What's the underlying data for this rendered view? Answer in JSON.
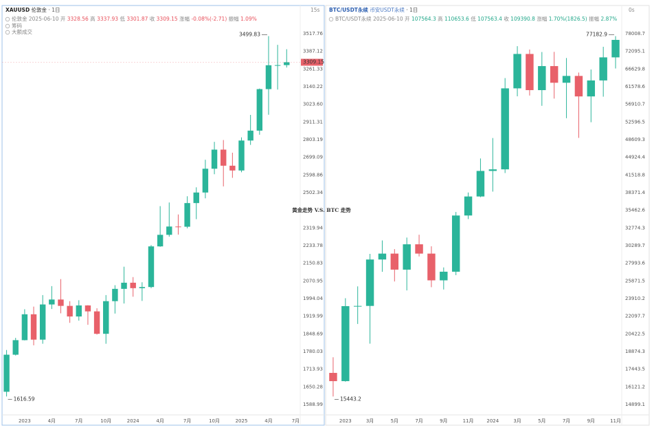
{
  "overlay_title": "黄金走势 V.S. BTC 走势",
  "chart_data": [
    {
      "type": "candlestick",
      "symbol": "XAUUSD",
      "name": "伦敦金",
      "interval": "1日",
      "refresh": "15s",
      "info_name": "伦敦金",
      "date": "2025-06-10",
      "quote": [
        {
          "label": "开",
          "value": "3328.56"
        },
        {
          "label": "高",
          "value": "3337.93"
        },
        {
          "label": "低",
          "value": "3301.87"
        },
        {
          "label": "收",
          "value": "3309.15"
        },
        {
          "label": "涨幅",
          "value": "-0.08%(-2.71)"
        },
        {
          "label": "振幅",
          "value": "1.09%"
        }
      ],
      "quote_color": "#e8505b",
      "indicators": [
        "筹码",
        "大额成交"
      ],
      "categories": [
        null,
        null,
        "2023",
        null,
        null,
        "4月",
        null,
        null,
        "7月",
        null,
        null,
        "10月",
        null,
        null,
        "2024",
        null,
        null,
        "4月",
        null,
        null,
        "7月",
        null,
        null,
        "10月",
        null,
        null,
        "2025",
        null,
        null,
        "4月",
        null,
        null,
        "7月"
      ],
      "open": [
        1633,
        1768,
        1824,
        1928,
        1826,
        1969,
        1990,
        1963,
        1919,
        1965,
        1940,
        1849,
        1983,
        2036,
        2063,
        2039,
        2044,
        2230,
        2286,
        2327,
        2326,
        2447,
        2503,
        2634,
        2744,
        2651,
        2624,
        2798,
        2858,
        3124,
        3288,
        3289,
        null
      ],
      "high": [
        1786,
        1833,
        1949,
        1960,
        2009,
        2048,
        2079,
        1983,
        1987,
        1966,
        1953,
        2009,
        2052,
        2135,
        2088,
        2065,
        2236,
        2431,
        2450,
        2388,
        2483,
        2531,
        2685,
        2790,
        2801,
        2726,
        2817,
        2956,
        3128,
        3499.83,
        3435,
        3403,
        null
      ],
      "low": [
        1616.59,
        1765,
        1823,
        1804,
        1810,
        1950,
        1932,
        1893,
        1902,
        1885,
        1846,
        1810,
        1931,
        1973,
        2002,
        1984,
        2039,
        2228,
        2277,
        2287,
        2318,
        2364,
        2472,
        2603,
        2536,
        2583,
        2614,
        2772,
        2833,
        2957,
        3121,
        3272,
        null
      ],
      "close": [
        1768,
        1824,
        1928,
        1826,
        1969,
        1990,
        1963,
        1919,
        1965,
        1940,
        1849,
        1983,
        2036,
        2063,
        2039,
        2044,
        2230,
        2286,
        2327,
        2326,
        2447,
        2503,
        2634,
        2744,
        2651,
        2624,
        2798,
        2858,
        3124,
        3288,
        3289,
        3309.15,
        null
      ],
      "up_color": "#2bb59a",
      "down_color": "#e8616a",
      "log_scale": true,
      "grid": false,
      "show_last_price": true,
      "ylim": [
        1561,
        3650
      ],
      "yticks": [
        3517.76,
        3387.12,
        3261.33,
        3140.22,
        {
          "value": 3023.6,
          "label": "3023.60"
        },
        2911.31,
        2803.19,
        2699.09,
        2598.86,
        2502.34,
        2319.94,
        2233.78,
        2150.83,
        2070.95,
        1994.04,
        1919.99,
        1848.69,
        1780.03,
        1713.93,
        1650.28,
        1588.99
      ]
    },
    {
      "type": "candlestick",
      "symbol": "BTC/USDT永续",
      "name": "币安USDT永续",
      "interval": "1日",
      "refresh": "0s",
      "info_name": "BTC/USDT永续",
      "date": "2025-06-10",
      "quote": [
        {
          "label": "开",
          "value": "107564.3"
        },
        {
          "label": "高",
          "value": "110653.6"
        },
        {
          "label": "低",
          "value": "107563.4"
        },
        {
          "label": "收",
          "value": "109390.8"
        },
        {
          "label": "涨幅",
          "value": "1.70%(1826.5)"
        },
        {
          "label": "振幅",
          "value": "2.87%"
        }
      ],
      "quote_color": "#22a88a",
      "indicators": [],
      "categories": [
        null,
        "2023",
        null,
        "3月",
        null,
        "5月",
        null,
        "7月",
        null,
        "9月",
        null,
        "11月",
        null,
        "2024",
        null,
        "3月",
        null,
        "5月",
        null,
        "7月",
        null,
        "9月",
        null,
        "11月"
      ],
      "open": [
        17160,
        16540,
        23120,
        23140,
        28470,
        29230,
        27210,
        30470,
        29230,
        25940,
        26960,
        34650,
        37720,
        42280,
        42580,
        61130,
        71280,
        60650,
        67520,
        62680,
        64620,
        58970,
        63330,
        70200
      ],
      "high": [
        18400,
        23950,
        25250,
        29200,
        31000,
        29820,
        31400,
        31800,
        30200,
        27480,
        35200,
        38400,
        44700,
        48970,
        64000,
        73800,
        72700,
        71900,
        71950,
        70000,
        65600,
        66500,
        73600,
        77182.9
      ],
      "low": [
        15443.2,
        16500,
        21350,
        19550,
        26950,
        25810,
        24800,
        28860,
        25160,
        24900,
        26550,
        34100,
        37600,
        38550,
        41880,
        59000,
        59200,
        56550,
        58400,
        53500,
        49000,
        52550,
        58900,
        66800
      ],
      "close": [
        16540,
        23120,
        23140,
        28470,
        29230,
        27210,
        30470,
        29230,
        25940,
        26960,
        34650,
        37720,
        42280,
        42580,
        61130,
        71280,
        60650,
        67520,
        62680,
        64620,
        58970,
        63330,
        70200,
        75900
      ],
      "up_color": "#2bb59a",
      "down_color": "#e8616a",
      "log_scale": true,
      "grid": false,
      "show_last_price": false,
      "ylim": [
        14359,
        84250
      ],
      "yticks": [
        78008.7,
        72095.1,
        66629.8,
        61578.6,
        56910.7,
        52596.5,
        48609.3,
        44924.4,
        41518.8,
        38371.4,
        35462.6,
        32774.3,
        30289.7,
        27993.6,
        25871.5,
        23910.2,
        22097.7,
        20422.5,
        18874.3,
        17443.5,
        16121.2,
        14899.1
      ]
    }
  ]
}
